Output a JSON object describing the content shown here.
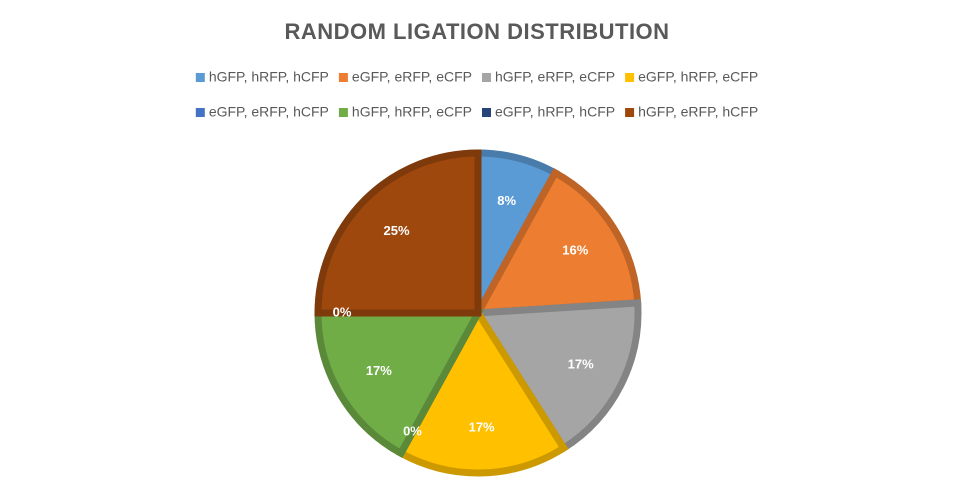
{
  "chart_data": {
    "type": "pie",
    "title": "RANDOM LIGATION DISTRIBUTION",
    "categories": [
      "hGFP, hRFP, hCFP",
      "eGFP, eRFP, eCFP",
      "hGFP, eRFP, eCFP",
      "eGFP, hRFP, eCFP",
      "eGFP, eRFP, hCFP",
      "hGFP, hRFP, eCFP",
      "eGFP, hRFP, hCFP",
      "hGFP, eRFP, hCFP"
    ],
    "values": [
      8,
      16,
      17,
      17,
      0,
      17,
      0,
      25
    ],
    "value_labels": [
      "8%",
      "16%",
      "17%",
      "17%",
      "0%",
      "17%",
      "0%",
      "25%"
    ],
    "colors": [
      "#5B9BD5",
      "#ED7D31",
      "#A5A5A5",
      "#FFC000",
      "#4472C4",
      "#70AD47",
      "#264478",
      "#9E480E"
    ],
    "legend": "top"
  }
}
